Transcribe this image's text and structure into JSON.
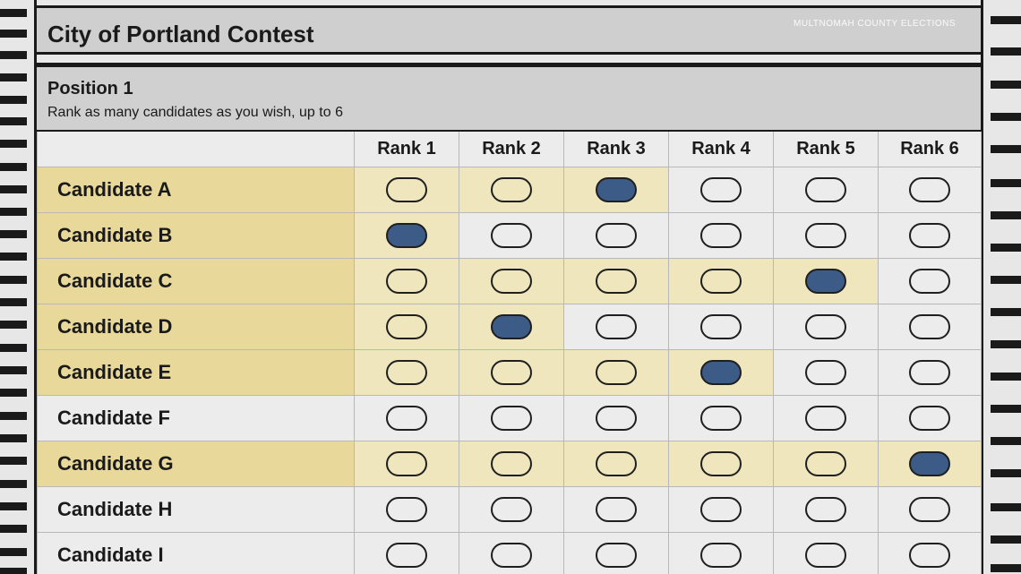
{
  "contest": {
    "title": "City of Portland Contest",
    "watermark": "MULTNOMAH COUNTY ELECTIONS"
  },
  "position": {
    "title": "Position 1",
    "instructions": "Rank as many candidates as you wish, up to 6"
  },
  "ranks": [
    "Rank 1",
    "Rank 2",
    "Rank 3",
    "Rank 4",
    "Rank 5",
    "Rank 6"
  ],
  "candidates": [
    {
      "name": "Candidate A",
      "filled_rank": 3
    },
    {
      "name": "Candidate B",
      "filled_rank": 1
    },
    {
      "name": "Candidate C",
      "filled_rank": 5
    },
    {
      "name": "Candidate D",
      "filled_rank": 2
    },
    {
      "name": "Candidate E",
      "filled_rank": 4
    },
    {
      "name": "Candidate F",
      "filled_rank": 0
    },
    {
      "name": "Candidate G",
      "filled_rank": 6
    },
    {
      "name": "Candidate H",
      "filled_rank": 0
    },
    {
      "name": "Candidate I",
      "filled_rank": 0
    }
  ],
  "colors": {
    "filled_oval": "#3c5b86",
    "highlight": "#efe6bd",
    "highlight_name": "#e8d99a"
  }
}
